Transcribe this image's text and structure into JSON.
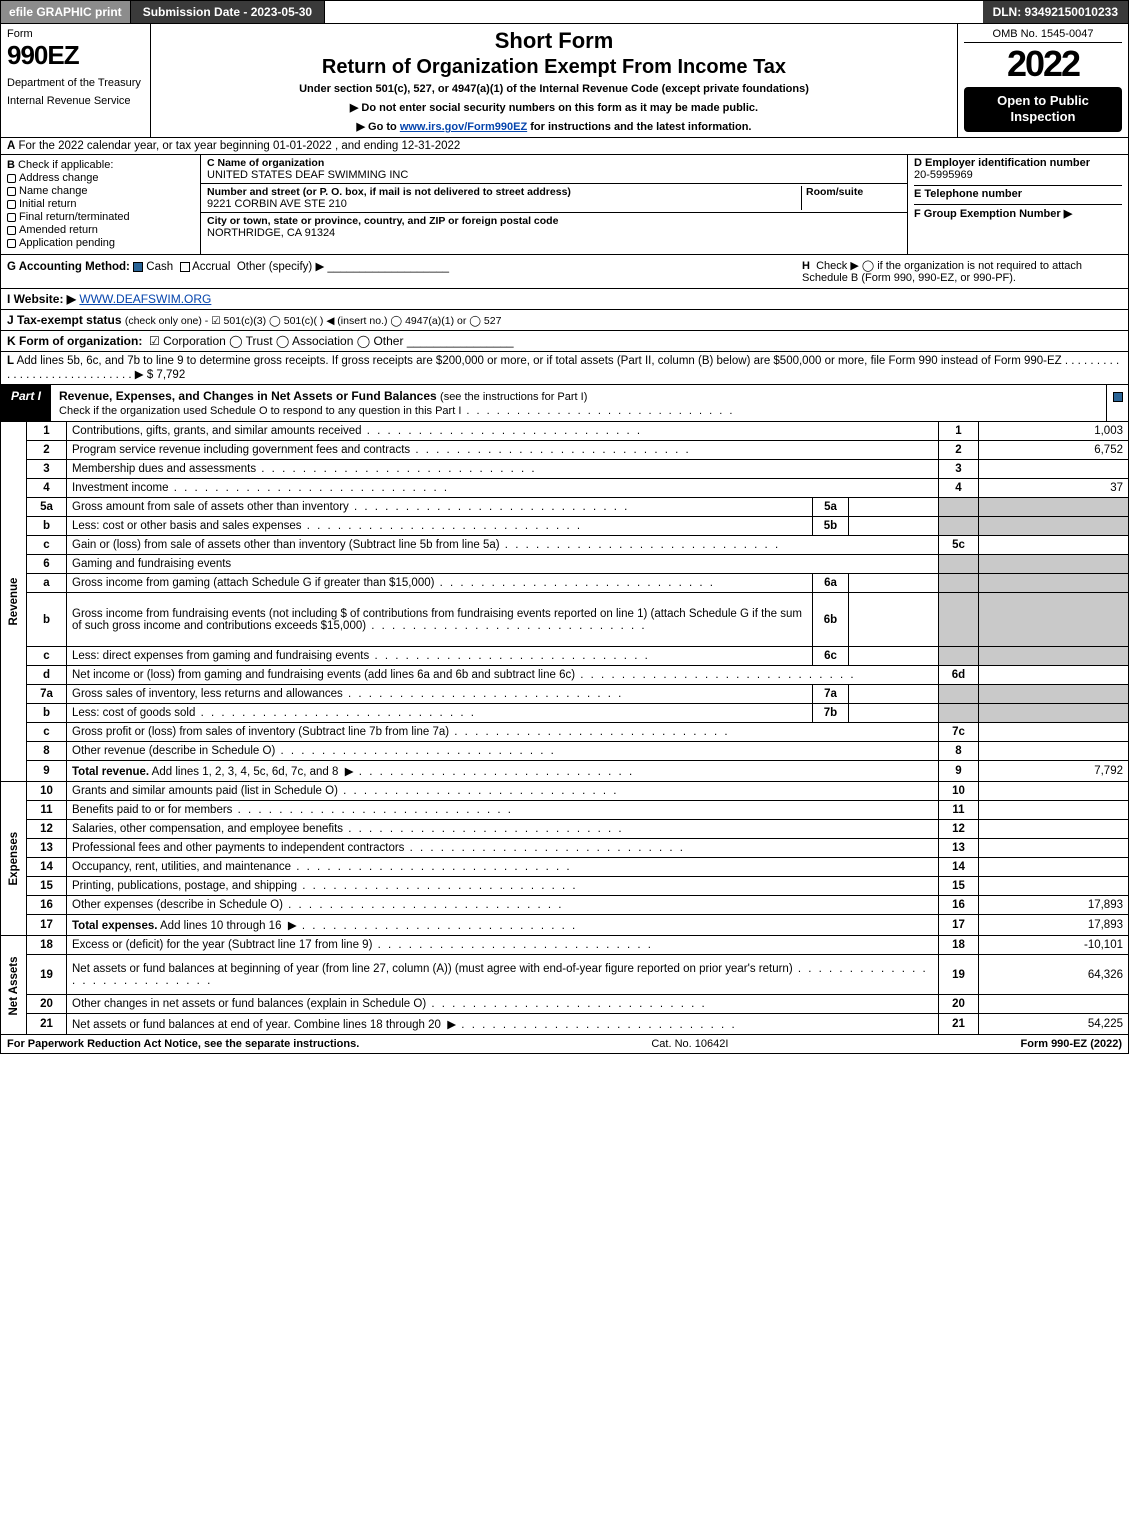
{
  "topbar": {
    "efile": "efile GRAPHIC print",
    "subdate": "Submission Date - 2023-05-30",
    "dln": "DLN: 93492150010233"
  },
  "header": {
    "form": "Form",
    "formnum": "990EZ",
    "dept": "Department of the Treasury",
    "irs": "Internal Revenue Service",
    "short": "Short Form",
    "ret": "Return of Organization Exempt From Income Tax",
    "under": "Under section 501(c), 527, or 4947(a)(1) of the Internal Revenue Code (except private foundations)",
    "ssn": "▶ Do not enter social security numbers on this form as it may be made public.",
    "goto_pre": "▶ Go to ",
    "goto_link": "www.irs.gov/Form990EZ",
    "goto_post": " for instructions and the latest information.",
    "omb": "OMB No. 1545-0047",
    "year": "2022",
    "open": "Open to Public Inspection"
  },
  "A": {
    "label": "A",
    "text": "For the 2022 calendar year, or tax year beginning 01-01-2022 , and ending 12-31-2022"
  },
  "B": {
    "label": "B",
    "title": "Check if applicable:",
    "opts": [
      "Address change",
      "Name change",
      "Initial return",
      "Final return/terminated",
      "Amended return",
      "Application pending"
    ]
  },
  "C": {
    "nameLbl": "C Name of organization",
    "name": "UNITED STATES DEAF SWIMMING INC",
    "streetLbl": "Number and street (or P. O. box, if mail is not delivered to street address)",
    "roomLbl": "Room/suite",
    "street": "9221 CORBIN AVE STE 210",
    "cityLbl": "City or town, state or province, country, and ZIP or foreign postal code",
    "city": "NORTHRIDGE, CA  91324"
  },
  "D": {
    "einLbl": "D Employer identification number",
    "ein": "20-5995969",
    "telLbl": "E Telephone number",
    "tel": "",
    "grpLbl": "F Group Exemption Number   ▶",
    "grp": ""
  },
  "G": {
    "label": "G Accounting Method:",
    "cash": "Cash",
    "accr": "Accrual",
    "other": "Other (specify) ▶"
  },
  "H": {
    "label": "H",
    "text": "Check ▶  ◯  if the organization is not required to attach Schedule B (Form 990, 990-EZ, or 990-PF)."
  },
  "I": {
    "label": "I Website: ▶",
    "val": "WWW.DEAFSWIM.ORG"
  },
  "J": {
    "label": "J Tax-exempt status",
    "text": "(check only one) - ☑ 501(c)(3) ◯ 501(c)(  ) ◀ (insert no.) ◯ 4947(a)(1) or ◯ 527"
  },
  "K": {
    "label": "K Form of organization:",
    "text": "☑ Corporation  ◯ Trust  ◯ Association  ◯ Other"
  },
  "L": {
    "label": "L",
    "text": "Add lines 5b, 6c, and 7b to line 9 to determine gross receipts. If gross receipts are $200,000 or more, or if total assets (Part II, column (B) below) are $500,000 or more, file Form 990 instead of Form 990-EZ  .  .  .  .  .  .  .  .  .  .  .  .  .  .  .  .  .  .  .  .  .  .  .  .  .  .  .  .  .  ▶ $ 7,792"
  },
  "part1": {
    "tab": "Part I",
    "title": "Revenue, Expenses, and Changes in Net Assets or Fund Balances",
    "note": "(see the instructions for Part I)",
    "sub": "Check if the organization used Schedule O to respond to any question in this Part I"
  },
  "labels": {
    "rev": "Revenue",
    "exp": "Expenses",
    "net": "Net Assets"
  },
  "lines": [
    {
      "n": "1",
      "d": "Contributions, gifts, grants, and similar amounts received",
      "r": "1",
      "a": "1,003"
    },
    {
      "n": "2",
      "d": "Program service revenue including government fees and contracts",
      "r": "2",
      "a": "6,752"
    },
    {
      "n": "3",
      "d": "Membership dues and assessments",
      "r": "3",
      "a": ""
    },
    {
      "n": "4",
      "d": "Investment income",
      "r": "4",
      "a": "37"
    },
    {
      "n": "5a",
      "d": "Gross amount from sale of assets other than inventory",
      "mini": "5a",
      "shadeR": true
    },
    {
      "n": "b",
      "d": "Less: cost or other basis and sales expenses",
      "mini": "5b",
      "shadeR": true
    },
    {
      "n": "c",
      "d": "Gain or (loss) from sale of assets other than inventory (Subtract line 5b from line 5a)",
      "r": "5c",
      "a": ""
    },
    {
      "n": "6",
      "d": "Gaming and fundraising events",
      "shadeR": true,
      "noR": true
    },
    {
      "n": "a",
      "d": "Gross income from gaming (attach Schedule G if greater than $15,000)",
      "mini": "6a",
      "shadeR": true
    },
    {
      "n": "b",
      "d": "Gross income from fundraising events (not including $                    of contributions from fundraising events reported on line 1) (attach Schedule G if the sum of such gross income and contributions exceeds $15,000)",
      "mini": "6b",
      "shadeR": true,
      "tall": true
    },
    {
      "n": "c",
      "d": "Less: direct expenses from gaming and fundraising events",
      "mini": "6c",
      "shadeR": true
    },
    {
      "n": "d",
      "d": "Net income or (loss) from gaming and fundraising events (add lines 6a and 6b and subtract line 6c)",
      "r": "6d",
      "a": ""
    },
    {
      "n": "7a",
      "d": "Gross sales of inventory, less returns and allowances",
      "mini": "7a",
      "shadeR": true
    },
    {
      "n": "b",
      "d": "Less: cost of goods sold",
      "mini": "7b",
      "shadeR": true
    },
    {
      "n": "c",
      "d": "Gross profit or (loss) from sales of inventory (Subtract line 7b from line 7a)",
      "r": "7c",
      "a": ""
    },
    {
      "n": "8",
      "d": "Other revenue (describe in Schedule O)",
      "r": "8",
      "a": ""
    },
    {
      "n": "9",
      "d": "Total revenue. Add lines 1, 2, 3, 4, 5c, 6d, 7c, and 8",
      "r": "9",
      "a": "7,792",
      "bold": true,
      "arrow": true
    }
  ],
  "expLines": [
    {
      "n": "10",
      "d": "Grants and similar amounts paid (list in Schedule O)",
      "r": "10",
      "a": ""
    },
    {
      "n": "11",
      "d": "Benefits paid to or for members",
      "r": "11",
      "a": ""
    },
    {
      "n": "12",
      "d": "Salaries, other compensation, and employee benefits",
      "r": "12",
      "a": ""
    },
    {
      "n": "13",
      "d": "Professional fees and other payments to independent contractors",
      "r": "13",
      "a": ""
    },
    {
      "n": "14",
      "d": "Occupancy, rent, utilities, and maintenance",
      "r": "14",
      "a": ""
    },
    {
      "n": "15",
      "d": "Printing, publications, postage, and shipping",
      "r": "15",
      "a": ""
    },
    {
      "n": "16",
      "d": "Other expenses (describe in Schedule O)",
      "r": "16",
      "a": "17,893"
    },
    {
      "n": "17",
      "d": "Total expenses. Add lines 10 through 16",
      "r": "17",
      "a": "17,893",
      "bold": true,
      "arrow": true
    }
  ],
  "netLines": [
    {
      "n": "18",
      "d": "Excess or (deficit) for the year (Subtract line 17 from line 9)",
      "r": "18",
      "a": "-10,101"
    },
    {
      "n": "19",
      "d": "Net assets or fund balances at beginning of year (from line 27, column (A)) (must agree with end-of-year figure reported on prior year's return)",
      "r": "19",
      "a": "64,326",
      "tall": true
    },
    {
      "n": "20",
      "d": "Other changes in net assets or fund balances (explain in Schedule O)",
      "r": "20",
      "a": ""
    },
    {
      "n": "21",
      "d": "Net assets or fund balances at end of year. Combine lines 18 through 20",
      "r": "21",
      "a": "54,225",
      "arrow": true
    }
  ],
  "footer": {
    "l": "For Paperwork Reduction Act Notice, see the separate instructions.",
    "c": "Cat. No. 10642I",
    "r": "Form 990-EZ (2022)"
  }
}
